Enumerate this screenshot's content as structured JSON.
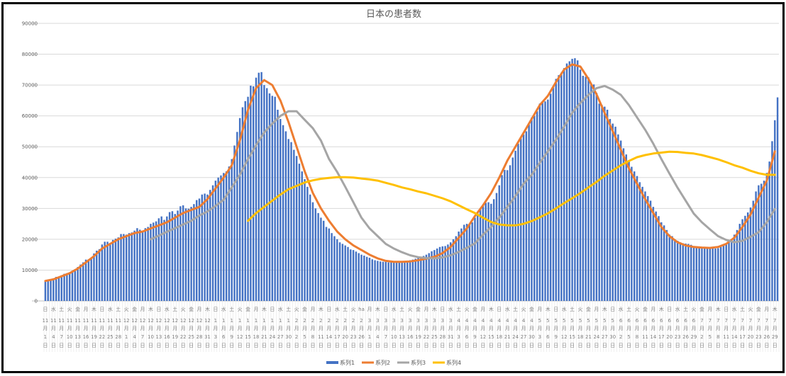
{
  "chart_data": {
    "type": "bar+line",
    "title": "日本の患者数",
    "xlabel": "",
    "ylabel": "",
    "ylim": [
      0,
      90000
    ],
    "y_ticks": [
      "0",
      "10000",
      "20000",
      "30000",
      "40000",
      "50000",
      "60000",
      "70000",
      "80000",
      "90000"
    ],
    "grid": true,
    "legend_position": "bottom",
    "x_tick_weekdays": [
      "日",
      "水",
      "土",
      "火",
      "金",
      "月",
      "木",
      "日",
      "水",
      "土",
      "火",
      "金",
      "月",
      "木",
      "日",
      "水",
      "土",
      "火",
      "金",
      "月",
      "木",
      "日",
      "水",
      "土",
      "火",
      "金",
      "月",
      "木",
      "日",
      "水",
      "土",
      "火",
      "金",
      "月",
      "木",
      "日",
      "水",
      "土",
      "火",
      "ha",
      "月",
      "木",
      "日",
      "水",
      "土",
      "火",
      "金",
      "月",
      "木",
      "日",
      "水",
      "土",
      "火",
      "金",
      "月",
      "木",
      "日",
      "水",
      "土",
      "火",
      "金",
      "月",
      "木",
      "日",
      "水",
      "土",
      "火",
      "金",
      "月",
      "木",
      "日",
      "水",
      "土",
      "火",
      "金",
      "月",
      "木",
      "日",
      "水",
      "土",
      "火",
      "金",
      "月",
      "木",
      "日",
      "水",
      "土",
      "火",
      "金",
      "月",
      "木"
    ],
    "x_tick_months": [
      "11",
      "11",
      "11",
      "11",
      "11",
      "11",
      "11",
      "11",
      "11",
      "11",
      "12",
      "12",
      "12",
      "12",
      "12",
      "12",
      "12",
      "12",
      "12",
      "12",
      "12",
      "1",
      "1",
      "1",
      "1",
      "1",
      "1",
      "1",
      "1",
      "1",
      "1",
      "2",
      "2",
      "2",
      "2",
      "2",
      "2",
      "2",
      "2",
      "2",
      "3",
      "3",
      "3",
      "3",
      "3",
      "3",
      "3",
      "3",
      "3",
      "3",
      "3",
      "4",
      "4",
      "4",
      "4",
      "4",
      "4",
      "4",
      "4",
      "4",
      "4",
      "5",
      "5",
      "5",
      "5",
      "5",
      "5",
      "5",
      "5",
      "5",
      "5",
      "6",
      "6",
      "6",
      "6",
      "6",
      "6",
      "6",
      "6",
      "6",
      "6",
      "7",
      "7",
      "7",
      "7",
      "7",
      "7",
      "7",
      "7",
      "7",
      "7"
    ],
    "x_tick_days": [
      "1",
      "4",
      "7",
      "10",
      "13",
      "16",
      "19",
      "22",
      "25",
      "28",
      "1",
      "4",
      "7",
      "10",
      "13",
      "16",
      "19",
      "22",
      "25",
      "28",
      "31",
      "3",
      "6",
      "9",
      "12",
      "15",
      "18",
      "21",
      "24",
      "27",
      "30",
      "2",
      "5",
      "8",
      "11",
      "14",
      "17",
      "20",
      "23",
      "26",
      "1",
      "4",
      "7",
      "10",
      "13",
      "16",
      "19",
      "22",
      "25",
      "28",
      "31",
      "3",
      "6",
      "9",
      "12",
      "15",
      "18",
      "21",
      "24",
      "27",
      "30",
      "3",
      "6",
      "9",
      "12",
      "15",
      "18",
      "21",
      "24",
      "27",
      "30",
      "2",
      "5",
      "8",
      "11",
      "14",
      "17",
      "20",
      "23",
      "26",
      "29",
      "2",
      "5",
      "8",
      "11",
      "14",
      "17",
      "20",
      "23",
      "26",
      "29"
    ],
    "month_unit": "月",
    "day_unit": "日",
    "series": [
      {
        "name": "系列1",
        "kind": "bar",
        "color": "#4472C4",
        "frequency": "daily",
        "values": [
          6500,
          6800,
          7000,
          7100,
          7800,
          7900,
          8300,
          8800,
          9000,
          9300,
          9800,
          10300,
          11000,
          11800,
          12500,
          13400,
          13500,
          14000,
          15400,
          16300,
          16800,
          18300,
          19200,
          19200,
          18800,
          19800,
          20200,
          20600,
          21700,
          21700,
          21500,
          22000,
          22200,
          22800,
          23600,
          23100,
          22700,
          23600,
          24000,
          25000,
          25400,
          25800,
          26800,
          27400,
          26300,
          27400,
          28800,
          29100,
          28200,
          29300,
          30700,
          31000,
          30000,
          29900,
          30500,
          31400,
          32700,
          33200,
          34500,
          34800,
          34500,
          36000,
          37500,
          39000,
          40000,
          40700,
          41500,
          42000,
          43600,
          46000,
          50400,
          54800,
          59300,
          62800,
          64800,
          66200,
          69800,
          69600,
          72400,
          74000,
          74200,
          70000,
          69000,
          67300,
          66500,
          66200,
          62000,
          59000,
          57000,
          55000,
          52500,
          51500,
          49000,
          47000,
          44500,
          42000,
          39500,
          37000,
          34500,
          32000,
          30000,
          28500,
          27000,
          26000,
          24000,
          23500,
          22000,
          21000,
          20000,
          19000,
          18500,
          18000,
          17500,
          16700,
          16500,
          16000,
          15500,
          15000,
          14700,
          14300,
          14000,
          13500,
          13200,
          13000,
          12800,
          12700,
          12700,
          12500,
          12600,
          12600,
          12700,
          12700,
          12800,
          12900,
          13000,
          13200,
          13400,
          13700,
          14000,
          14300,
          14600,
          15000,
          15500,
          16100,
          16500,
          17000,
          17500,
          17700,
          17800,
          18300,
          19000,
          20000,
          21000,
          22500,
          23500,
          24700,
          25000,
          24700,
          25500,
          27000,
          28500,
          30000,
          31300,
          31800,
          32000,
          31500,
          33000,
          35000,
          37500,
          40800,
          42500,
          42400,
          44000,
          46500,
          48700,
          51000,
          52700,
          54000,
          55000,
          57200,
          59500,
          60000,
          61500,
          64000,
          64500,
          64700,
          65300,
          67200,
          69600,
          72000,
          73200,
          74000,
          75500,
          77000,
          77700,
          78500,
          78700,
          78000,
          75000,
          73000,
          72700,
          72500,
          70500,
          70200,
          67500,
          64000,
          63500,
          63000,
          62000,
          59000,
          57500,
          56500,
          54000,
          52000,
          49500,
          47500,
          45500,
          43500,
          42000,
          40500,
          38500,
          37000,
          35500,
          34000,
          32500,
          30500,
          29000,
          27500,
          25500,
          24500,
          23000,
          21500,
          21000,
          20000,
          19500,
          19000,
          18700,
          18600,
          18500,
          18200,
          17800,
          17500,
          17600,
          17400,
          17000,
          17000,
          17400,
          17200,
          17000,
          17100,
          17500,
          18000,
          18600,
          19600,
          20000,
          21500,
          23000,
          25000,
          26500,
          27600,
          28700,
          30300,
          32500,
          35500,
          37500,
          38000,
          39000,
          41500,
          45200,
          51800,
          58600,
          66000
        ]
      },
      {
        "name": "系列2",
        "kind": "line",
        "color": "#ED7D31",
        "frequency": "every 3rd day (at tick dates)",
        "values": [
          6500,
          7000,
          8000,
          9000,
          10500,
          12500,
          14500,
          17000,
          18500,
          20000,
          21000,
          22000,
          22500,
          23500,
          24500,
          25500,
          27000,
          28500,
          29500,
          30500,
          33000,
          36500,
          40000,
          44000,
          52000,
          62000,
          69000,
          71600,
          70000,
          65000,
          58000,
          50000,
          42000,
          35000,
          30000,
          26000,
          22500,
          20000,
          18000,
          16500,
          15000,
          13800,
          13000,
          12700,
          12700,
          12800,
          13200,
          13700,
          14300,
          15500,
          17500,
          20500,
          23500,
          27500,
          31000,
          35000,
          40000,
          45500,
          50000,
          54500,
          59000,
          63500,
          66500,
          71000,
          75000,
          76700,
          76000,
          72000,
          67000,
          61000,
          55000,
          49000,
          43000,
          38000,
          33000,
          28500,
          24000,
          21000,
          19000,
          18000,
          17500,
          17300,
          17200,
          17500,
          18500,
          20500,
          24000,
          28000,
          33500,
          39000,
          48500
        ]
      },
      {
        "name": "系列3",
        "kind": "line",
        "color": "#A5A5A5",
        "frequency": "every 3rd day (at tick dates)",
        "values": [
          null,
          null,
          null,
          null,
          null,
          null,
          null,
          null,
          null,
          null,
          null,
          null,
          null,
          20000,
          21200,
          22400,
          23600,
          24800,
          26000,
          27700,
          29000,
          30800,
          32800,
          36800,
          40900,
          46000,
          50500,
          54600,
          57500,
          60000,
          61500,
          61500,
          58700,
          56000,
          52000,
          46000,
          41800,
          37000,
          32000,
          27000,
          23500,
          21000,
          18500,
          17000,
          15800,
          14800,
          14200,
          13900,
          13800,
          14100,
          14800,
          15900,
          17200,
          18700,
          21500,
          24000,
          27000,
          30500,
          34000,
          38000,
          40900,
          44800,
          48500,
          52300,
          56500,
          61000,
          64200,
          66800,
          69000,
          69700,
          68500,
          66800,
          63500,
          59500,
          55500,
          51000,
          46000,
          41300,
          36700,
          32500,
          28300,
          25500,
          23200,
          21000,
          19800,
          19000,
          19500,
          20800,
          22300,
          25500,
          29800
        ]
      },
      {
        "name": "系列4",
        "kind": "line",
        "color": "#FFC000",
        "frequency": "every 3rd day (at tick dates)",
        "values": [
          null,
          null,
          null,
          null,
          null,
          null,
          null,
          null,
          null,
          null,
          null,
          null,
          null,
          null,
          null,
          null,
          null,
          null,
          null,
          null,
          null,
          null,
          null,
          null,
          null,
          26000,
          28500,
          30500,
          32500,
          34500,
          36200,
          37300,
          38400,
          39100,
          39600,
          39900,
          40100,
          40100,
          40000,
          39700,
          39400,
          39000,
          38300,
          37600,
          36800,
          36200,
          35500,
          34900,
          34100,
          33300,
          32300,
          31000,
          29700,
          28500,
          27000,
          25600,
          24800,
          24500,
          24500,
          25000,
          25900,
          27100,
          28400,
          30000,
          31700,
          33300,
          35000,
          36800,
          38600,
          40600,
          42300,
          44000,
          45400,
          46600,
          47300,
          47800,
          48100,
          48400,
          48300,
          48000,
          47800,
          47300,
          46600,
          45900,
          45000,
          44000,
          43200,
          42200,
          41400,
          40900,
          40900
        ]
      }
    ]
  }
}
